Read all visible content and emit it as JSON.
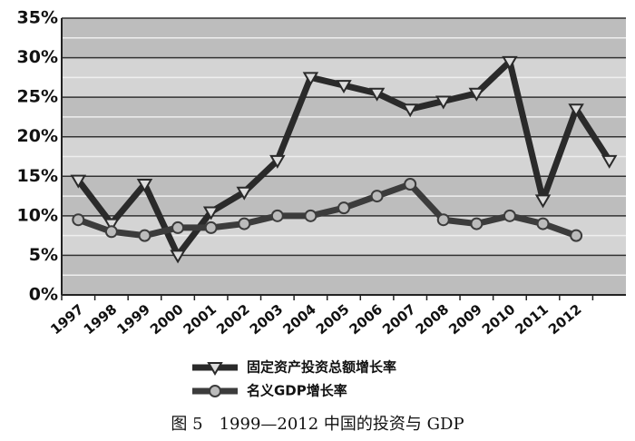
{
  "chart_data": {
    "type": "line",
    "title": "图 5　1999—2012 中国的投资与 GDP",
    "categories": [
      "1997",
      "1998",
      "1999",
      "2000",
      "2001",
      "2002",
      "2003",
      "2004",
      "2005",
      "2006",
      "2007",
      "2008",
      "2009",
      "2010",
      "2011",
      "2012",
      null
    ],
    "series": [
      {
        "name": "固定资产投资总额增长率",
        "color": "#2a2a2a",
        "marker": "triangle-down",
        "values": [
          14.5,
          9,
          14,
          5,
          10.5,
          13,
          17,
          27.5,
          26.5,
          25.5,
          23.5,
          24.5,
          25.5,
          29.5,
          12,
          23.5,
          17
        ]
      },
      {
        "name": "名义GDP增长率",
        "color": "#3c3c3c",
        "marker": "circle",
        "values": [
          9.5,
          8,
          7.5,
          8.5,
          8.5,
          9,
          10,
          10,
          11,
          12.5,
          14,
          9.5,
          9,
          10,
          9,
          7.5,
          null
        ]
      }
    ],
    "ylim": [
      0,
      35
    ],
    "yticks": [
      {
        "value": 0,
        "label": "0%"
      },
      {
        "value": 5,
        "label": "5%"
      },
      {
        "value": 10,
        "label": "10%"
      },
      {
        "value": 15,
        "label": "15%"
      },
      {
        "value": 20,
        "label": "20%"
      },
      {
        "value": 25,
        "label": "25%"
      },
      {
        "value": 30,
        "label": "30%"
      },
      {
        "value": 35,
        "label": "35%"
      }
    ],
    "grid": true,
    "legend": "bottom"
  }
}
